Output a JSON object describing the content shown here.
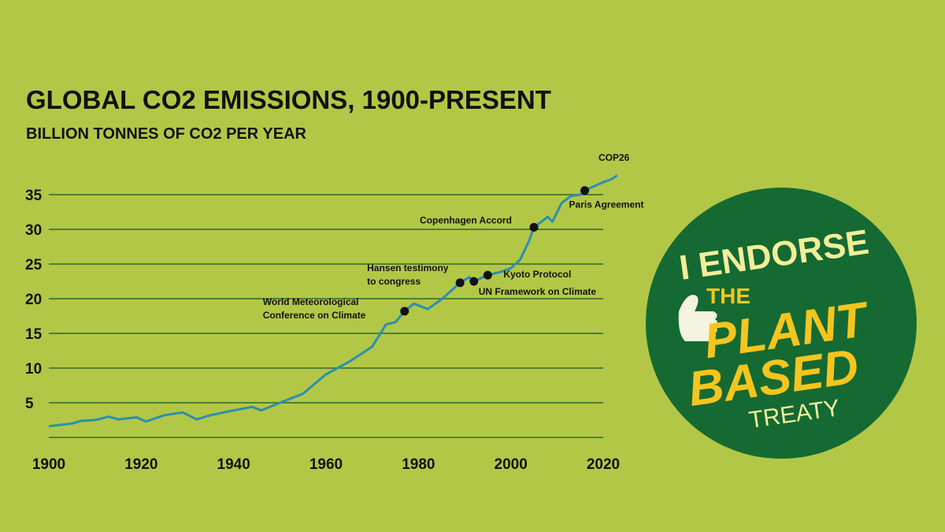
{
  "chart_data": {
    "type": "line",
    "title": "GLOBAL CO2 EMISSIONS, 1900-PRESENT",
    "subtitle": "BILLION TONNES OF CO2 PER YEAR",
    "x": [
      1900,
      1905,
      1907,
      1910,
      1913,
      1915,
      1919,
      1921,
      1925,
      1929,
      1932,
      1935,
      1940,
      1944,
      1946,
      1950,
      1955,
      1960,
      1965,
      1970,
      1973,
      1975,
      1977,
      1979,
      1982,
      1985,
      1989,
      1991,
      1992,
      1995,
      1998,
      2000,
      2002,
      2004,
      2005,
      2008,
      2009,
      2011,
      2013,
      2015,
      2016,
      2018,
      2020,
      2022,
      2023
    ],
    "values": [
      1.6,
      2.0,
      2.4,
      2.5,
      3.0,
      2.6,
      2.9,
      2.3,
      3.2,
      3.6,
      2.6,
      3.2,
      3.9,
      4.4,
      3.9,
      5.0,
      6.3,
      9.1,
      10.9,
      13.1,
      16.3,
      16.6,
      18.2,
      19.3,
      18.5,
      19.9,
      22.3,
      23.1,
      22.5,
      23.4,
      23.9,
      24.4,
      25.6,
      28.4,
      30.3,
      31.8,
      31.1,
      33.8,
      34.8,
      35.0,
      35.6,
      36.2,
      36.8,
      37.3,
      37.8
    ],
    "color": "#2a8fb2",
    "xlim": [
      1900,
      2020
    ],
    "ylim": [
      0,
      35
    ],
    "xticks": [
      1900,
      1920,
      1940,
      1960,
      1980,
      2000,
      2020
    ],
    "yticks": [
      5,
      10,
      15,
      20,
      25,
      30,
      35
    ],
    "grid": true,
    "annotations": [
      {
        "x": 1977,
        "y": 18.2,
        "text": [
          "World Meteorological",
          "Conference on Climate"
        ]
      },
      {
        "x": 1989,
        "y": 22.3,
        "text": [
          "Hansen testimony",
          "to congress"
        ]
      },
      {
        "x": 1992,
        "y": 22.5,
        "text": [
          "UN Framework on Climate"
        ]
      },
      {
        "x": 1995,
        "y": 23.4,
        "text": [
          "Kyoto Protocol"
        ]
      },
      {
        "x": 2005,
        "y": 30.3,
        "text": [
          "Copenhagen Accord"
        ]
      },
      {
        "x": 2016,
        "y": 35.6,
        "text": [
          "Paris Agreement"
        ]
      }
    ],
    "end_label": "COP26"
  },
  "badge": {
    "lines": [
      "I ENDORSE",
      "THE",
      "PLANT",
      "BASED",
      "TREATY"
    ]
  }
}
